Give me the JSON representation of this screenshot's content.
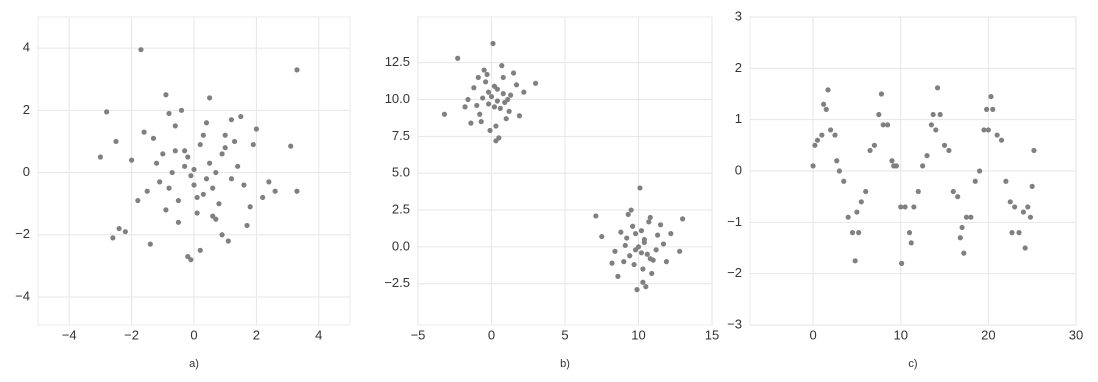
{
  "chart_data": [
    {
      "type": "scatter",
      "xlabel": "a)",
      "color": "#808080",
      "grid": true,
      "xlim": [
        -5,
        5
      ],
      "ylim": [
        -4.9,
        5
      ],
      "xticks": [
        {
          "value": -4,
          "label": "−4"
        },
        {
          "value": -2,
          "label": "−2"
        },
        0,
        2,
        4
      ],
      "yticks": [
        {
          "value": -4,
          "label": "−4"
        },
        {
          "value": -2,
          "label": "−2"
        },
        0,
        2,
        4
      ],
      "x": [
        -1.7,
        3.3,
        -2.8,
        -3,
        3.1,
        -2.6,
        -2.4,
        -0.1,
        0.5,
        1.2,
        -0.8,
        0.3,
        0.9,
        -1.2,
        1.6,
        -0.5,
        0.0,
        0.7,
        -1.5,
        1.9,
        -0.3,
        0.4,
        -0.9,
        1.1,
        -2.0,
        2.2,
        0.2,
        -0.6,
        1.4,
        -1.1,
        0.8,
        -0.2,
        0.6,
        -1.3,
        1.7,
        -0.7,
        0.1,
        2.0,
        -1.8,
        1.0,
        -0.4,
        0.3,
        -1.0,
        1.3,
        -0.1,
        0.5,
        2.4,
        -2.2,
        0.9,
        -0.8,
        1.5,
        -0.5,
        0.2,
        -1.6,
        0.0,
        1.8,
        -0.3,
        0.7,
        -1.4,
        1.2,
        -2.5,
        2.6,
        0.4,
        -0.9,
        0.6,
        0.1,
        -0.6,
        1.0,
        -0.2,
        3.3
      ],
      "y": [
        3.95,
        3.3,
        1.95,
        0.5,
        0.85,
        -2.1,
        -1.8,
        -2.8,
        2.4,
        1.7,
        1.9,
        1.2,
        0.6,
        0.3,
        -0.4,
        -0.9,
        0.1,
        -1.5,
        -0.6,
        0.9,
        0.7,
        -0.2,
        -1.2,
        -2.2,
        0.4,
        -0.8,
        -2.5,
        1.5,
        0.2,
        -0.3,
        -1.0,
        0.5,
        -0.5,
        1.1,
        -1.7,
        0.0,
        -1.3,
        1.4,
        -0.9,
        0.8,
        2.0,
        -0.7,
        0.6,
        1.0,
        -0.1,
        0.3,
        -0.3,
        -1.9,
        -2.0,
        -0.5,
        1.8,
        -1.6,
        0.9,
        1.3,
        -0.4,
        -1.1,
        0.2,
        0.0,
        -2.3,
        -0.2,
        1.0,
        -0.6,
        1.6,
        2.5,
        -1.4,
        -0.8,
        0.7,
        1.2,
        -2.7,
        -0.6
      ]
    },
    {
      "type": "scatter",
      "xlabel": "b)",
      "color": "#808080",
      "grid": true,
      "xlim": [
        -5,
        15
      ],
      "ylim": [
        -5.3,
        15.6
      ],
      "xticks": [
        {
          "value": -5,
          "label": "−5"
        },
        0,
        5,
        10,
        15
      ],
      "yticks": [
        {
          "value": -2.5,
          "label": "−2.5"
        },
        {
          "value": 0,
          "label": "0.0"
        },
        2.5,
        {
          "value": 5,
          "label": "5.0"
        },
        7.5,
        {
          "value": 10,
          "label": "10.0"
        },
        12.5
      ],
      "x": [
        0.1,
        -0.5,
        0.8,
        -1.2,
        1.3,
        0.4,
        -0.2,
        0.6,
        -0.8,
        1.0,
        -1.6,
        0.3,
        -0.4,
        1.7,
        0.0,
        -1.0,
        0.9,
        0.2,
        -0.6,
        1.2,
        -2.3,
        0.5,
        -0.1,
        2.2,
        -1.4,
        0.7,
        -0.3,
        1.5,
        -0.9,
        0.2,
        -3.2,
        3.0,
        0.3,
        -1.8,
        1.9,
        -0.7,
        0.4,
        0.8,
        -0.2,
        1.1,
        10.1,
        9.5,
        10.8,
        8.8,
        11.3,
        10.4,
        9.8,
        10.6,
        9.2,
        11.0,
        8.4,
        10.3,
        9.6,
        11.7,
        10.0,
        9.0,
        10.9,
        10.2,
        9.4,
        11.2,
        7.1,
        10.5,
        9.9,
        12.2,
        8.6,
        10.7,
        9.7,
        11.5,
        9.1,
        10.2,
        13.0,
        7.5,
        10.3,
        8.2,
        11.9,
        9.3,
        10.4,
        10.8,
        9.8,
        12.8
      ],
      "y": [
        13.8,
        12.0,
        11.5,
        10.8,
        10.3,
        9.9,
        10.5,
        9.4,
        9.0,
        8.7,
        10.0,
        8.2,
        11.2,
        11.0,
        10.2,
        9.6,
        9.8,
        10.9,
        10.1,
        9.2,
        12.8,
        7.4,
        7.9,
        10.5,
        8.4,
        12.3,
        11.7,
        11.8,
        11.5,
        9.5,
        9.0,
        11.1,
        7.2,
        9.5,
        8.9,
        8.5,
        10.7,
        10.4,
        9.7,
        10.0,
        4.0,
        2.5,
        2.0,
        1.0,
        0.8,
        0.3,
        -0.2,
        -0.5,
        0.6,
        -0.9,
        -0.3,
        -1.5,
        1.4,
        0.2,
        0.0,
        -1.0,
        -1.8,
        1.1,
        -0.6,
        -0.2,
        2.1,
        -2.7,
        -2.9,
        0.9,
        -2.0,
        1.7,
        -1.2,
        1.5,
        0.1,
        -0.4,
        1.9,
        0.7,
        -2.4,
        -1.1,
        -1.0,
        2.2,
        0.5,
        -0.8,
        0.9,
        -0.3
      ]
    },
    {
      "type": "scatter",
      "xlabel": "c)",
      "color": "#808080",
      "grid": true,
      "xlim": [
        -7.2,
        30
      ],
      "ylim": [
        -3,
        3
      ],
      "xticks": [
        0,
        10,
        20,
        30
      ],
      "yticks": [
        {
          "value": -3,
          "label": "−3"
        },
        {
          "value": -2,
          "label": "−2"
        },
        {
          "value": -1,
          "label": "−1"
        },
        0,
        1,
        2,
        3
      ],
      "x": [
        0,
        0.5,
        1,
        1.5,
        2,
        2.5,
        3,
        3.5,
        4,
        4.5,
        5,
        5.5,
        6,
        6.5,
        7,
        7.5,
        8,
        8.5,
        9,
        9.5,
        10,
        10.5,
        11,
        11.5,
        12,
        12.5,
        13,
        13.5,
        14,
        14.5,
        15,
        15.5,
        16,
        16.5,
        17,
        17.5,
        18,
        18.5,
        19,
        19.5,
        20,
        20.5,
        21,
        21.5,
        22,
        22.5,
        23,
        23.5,
        24,
        24.5,
        25,
        0.2,
        1.2,
        1.7,
        2.7,
        4.8,
        5.2,
        7.8,
        9.2,
        10.1,
        11.2,
        13.7,
        14.2,
        16.8,
        17.2,
        19.8,
        20.3,
        22.7,
        24.2,
        24.8,
        25.2
      ],
      "y": [
        0.1,
        0.6,
        0.7,
        1.2,
        0.8,
        0.7,
        0.0,
        -0.2,
        -0.9,
        -1.2,
        -0.8,
        -0.6,
        -0.4,
        0.4,
        0.5,
        1.1,
        0.9,
        0.9,
        0.2,
        0.1,
        -0.7,
        -0.7,
        -1.2,
        -0.7,
        -0.4,
        0.1,
        0.3,
        0.9,
        0.8,
        1.1,
        0.5,
        0.4,
        -0.4,
        -0.5,
        -1.1,
        -0.9,
        -0.9,
        -0.2,
        0.0,
        0.8,
        0.8,
        1.2,
        0.7,
        0.6,
        -0.2,
        -0.6,
        -0.7,
        -1.2,
        -0.8,
        -0.7,
        -0.3,
        0.5,
        1.3,
        1.58,
        0.2,
        -1.75,
        -1.2,
        1.5,
        0.1,
        -1.8,
        -1.4,
        1.1,
        1.62,
        -1.3,
        -1.6,
        1.2,
        1.45,
        -1.2,
        -1.5,
        -0.9,
        0.4
      ]
    }
  ]
}
